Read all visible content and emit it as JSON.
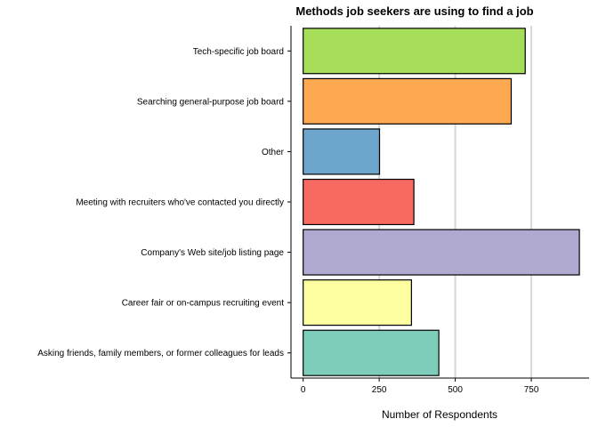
{
  "chart_data": {
    "type": "bar",
    "orientation": "horizontal",
    "title": "Methods job seekers are using to find a job",
    "xlabel": "Number of Respondents",
    "ylabel": "",
    "xlim": [
      -40,
      940
    ],
    "xticks": [
      0,
      250,
      500,
      750
    ],
    "grid": "vertical major gridlines",
    "legend": "none",
    "categories": [
      "Tech-specific job board",
      "Searching general-purpose job board",
      "Other",
      "Meeting with recruiters who've contacted you directly",
      "Company's Web site/job listing page",
      "Career fair or on-campus recruiting event",
      "Asking friends, family members, or former colleagues for leads"
    ],
    "values": [
      730,
      684,
      251,
      364,
      908,
      356,
      446
    ],
    "colors": [
      "#a6de5a",
      "#fca952",
      "#6ea5cc",
      "#f8695f",
      "#b0aad1",
      "#fdfea0",
      "#7ecdbb"
    ]
  }
}
